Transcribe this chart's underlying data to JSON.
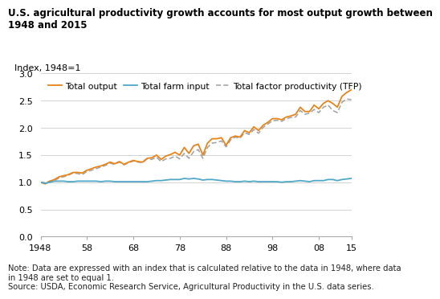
{
  "title_line1": "U.S. agricultural productivity growth accounts for most output growth between",
  "title_line2": "1948 and 2015",
  "ylabel": "Index, 1948=1",
  "note": "Note: Data are expressed with an index that is calculated relative to the data in 1948, where data\nin 1948 are set to equal 1.\nSource: USDA, Economic Research Service, Agricultural Productivity in the U.S. data series.",
  "ylim": [
    0.0,
    3.0
  ],
  "yticks": [
    0.0,
    0.5,
    1.0,
    1.5,
    2.0,
    2.5,
    3.0
  ],
  "xticks": [
    1948,
    1958,
    1968,
    1978,
    1988,
    1998,
    2008,
    2015
  ],
  "xticklabels": [
    "1948",
    "58",
    "68",
    "78",
    "88",
    "98",
    "08",
    "15"
  ],
  "years": [
    1948,
    1949,
    1950,
    1951,
    1952,
    1953,
    1954,
    1955,
    1956,
    1957,
    1958,
    1959,
    1960,
    1961,
    1962,
    1963,
    1964,
    1965,
    1966,
    1967,
    1968,
    1969,
    1970,
    1971,
    1972,
    1973,
    1974,
    1975,
    1976,
    1977,
    1978,
    1979,
    1980,
    1981,
    1982,
    1983,
    1984,
    1985,
    1986,
    1987,
    1988,
    1989,
    1990,
    1991,
    1992,
    1993,
    1994,
    1995,
    1996,
    1997,
    1998,
    1999,
    2000,
    2001,
    2002,
    2003,
    2004,
    2005,
    2006,
    2007,
    2008,
    2009,
    2010,
    2011,
    2012,
    2013,
    2014,
    2015
  ],
  "total_output": [
    1.0,
    0.97,
    1.02,
    1.05,
    1.1,
    1.12,
    1.14,
    1.18,
    1.18,
    1.17,
    1.22,
    1.25,
    1.28,
    1.3,
    1.33,
    1.37,
    1.34,
    1.38,
    1.33,
    1.37,
    1.4,
    1.38,
    1.37,
    1.44,
    1.45,
    1.5,
    1.42,
    1.48,
    1.51,
    1.55,
    1.5,
    1.64,
    1.53,
    1.67,
    1.7,
    1.5,
    1.72,
    1.8,
    1.8,
    1.82,
    1.68,
    1.82,
    1.85,
    1.83,
    1.95,
    1.91,
    2.02,
    1.95,
    2.05,
    2.1,
    2.17,
    2.17,
    2.15,
    2.2,
    2.22,
    2.25,
    2.38,
    2.3,
    2.3,
    2.42,
    2.35,
    2.45,
    2.5,
    2.45,
    2.38,
    2.58,
    2.65,
    2.7
  ],
  "total_farm_input": [
    1.0,
    0.98,
    1.0,
    1.02,
    1.02,
    1.02,
    1.01,
    1.01,
    1.02,
    1.02,
    1.02,
    1.02,
    1.02,
    1.01,
    1.02,
    1.02,
    1.01,
    1.01,
    1.01,
    1.01,
    1.01,
    1.01,
    1.01,
    1.01,
    1.02,
    1.03,
    1.03,
    1.04,
    1.05,
    1.05,
    1.05,
    1.07,
    1.06,
    1.07,
    1.06,
    1.04,
    1.05,
    1.05,
    1.04,
    1.03,
    1.02,
    1.02,
    1.01,
    1.01,
    1.02,
    1.01,
    1.02,
    1.01,
    1.01,
    1.01,
    1.01,
    1.01,
    1.0,
    1.01,
    1.01,
    1.02,
    1.03,
    1.02,
    1.01,
    1.03,
    1.03,
    1.03,
    1.05,
    1.05,
    1.03,
    1.05,
    1.06,
    1.07
  ],
  "tfp": [
    1.0,
    0.99,
    1.02,
    1.03,
    1.08,
    1.1,
    1.13,
    1.17,
    1.16,
    1.14,
    1.2,
    1.22,
    1.25,
    1.28,
    1.31,
    1.35,
    1.33,
    1.37,
    1.32,
    1.36,
    1.39,
    1.37,
    1.36,
    1.43,
    1.42,
    1.46,
    1.38,
    1.43,
    1.44,
    1.48,
    1.43,
    1.53,
    1.44,
    1.56,
    1.6,
    1.44,
    1.64,
    1.72,
    1.73,
    1.76,
    1.65,
    1.78,
    1.83,
    1.81,
    1.91,
    1.88,
    1.97,
    1.9,
    2.01,
    2.07,
    2.13,
    2.14,
    2.12,
    2.17,
    2.19,
    2.2,
    2.32,
    2.25,
    2.27,
    2.34,
    2.28,
    2.38,
    2.42,
    2.32,
    2.28,
    2.47,
    2.53,
    2.52
  ],
  "output_color": "#E8841A",
  "input_color": "#4FA8C8",
  "tfp_color": "#A0A0A0",
  "title_fontsize": 8.5,
  "axis_fontsize": 8.0,
  "note_fontsize": 7.2,
  "legend_fontsize": 7.8
}
